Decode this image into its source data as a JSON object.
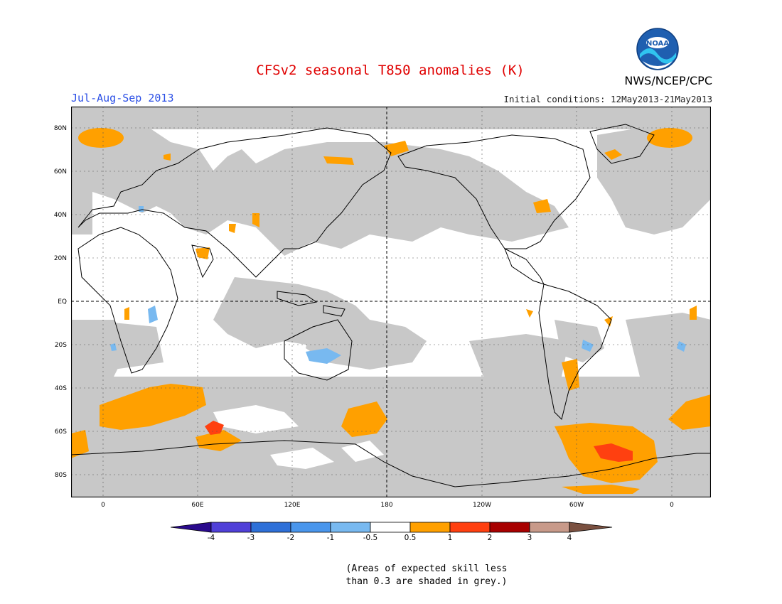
{
  "header": {
    "title": "CFSv2 seasonal T850 anomalies (K)",
    "season": "Jul-Aug-Sep 2013",
    "org": "NWS/NCEP/CPC",
    "initial_conditions": "Initial conditions: 12May2013-21May2013",
    "logo_text": "NOAA"
  },
  "map": {
    "lat_labels": [
      "80N",
      "60N",
      "40N",
      "20N",
      "EQ",
      "20S",
      "40S",
      "60S",
      "80S"
    ],
    "lon_labels": [
      "0",
      "60E",
      "120E",
      "180",
      "120W",
      "60W",
      "0"
    ],
    "colors": {
      "skill_grey": "#c8c8c8",
      "land_outline": "#000000",
      "orange": "#ffa000",
      "red_orange": "#ff4010",
      "light_blue": "#78b9f0"
    }
  },
  "colorbar": {
    "labels": [
      "-4",
      "-3",
      "-2",
      "-1",
      "-0.5",
      "0.5",
      "1",
      "2",
      "3",
      "4"
    ],
    "colors": [
      "#2a0a8c",
      "#5040d8",
      "#2e70d8",
      "#4a96ec",
      "#78b9f0",
      "#ffffff",
      "#ffa000",
      "#ff4010",
      "#a80000",
      "#c89a8a",
      "#7a5040"
    ]
  },
  "note": {
    "line1": "(Areas of expected skill less",
    "line2": "than 0.3 are shaded in grey.)"
  }
}
